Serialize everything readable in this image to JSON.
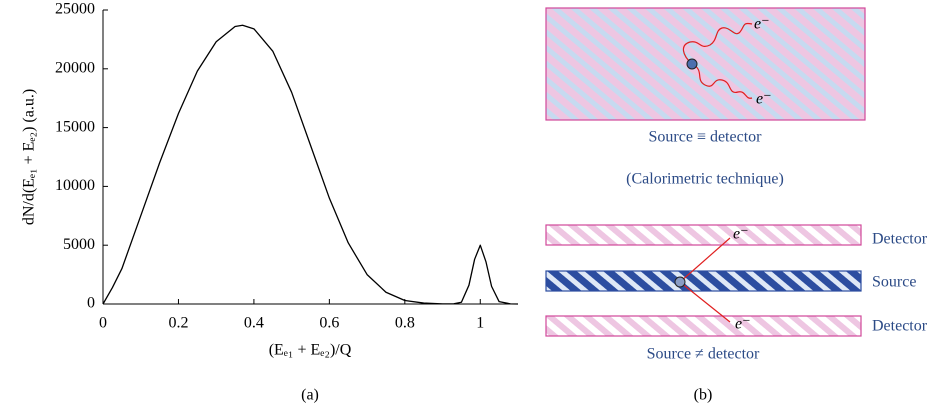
{
  "chart_data": {
    "type": "line",
    "x_label": "(Eₑ₁ + Eₑ₂)/Q",
    "y_label": "dN/d(Eₑ₁ + Eₑ₂) (a.u.)",
    "caption": "(a)",
    "x": [
      0,
      0.025,
      0.05,
      0.1,
      0.15,
      0.2,
      0.25,
      0.3,
      0.35,
      0.37,
      0.4,
      0.45,
      0.5,
      0.55,
      0.6,
      0.65,
      0.7,
      0.75,
      0.8,
      0.85,
      0.9,
      0.93,
      0.95,
      0.97,
      0.985,
      1.0,
      1.015,
      1.03,
      1.05,
      1.08,
      1.1
    ],
    "values": [
      0,
      1400,
      3000,
      7500,
      12000,
      16200,
      19800,
      22300,
      23600,
      23700,
      23400,
      21500,
      18000,
      13500,
      9000,
      5200,
      2500,
      1000,
      300,
      80,
      10,
      20,
      150,
      1600,
      3800,
      5000,
      3600,
      1500,
      200,
      10,
      0
    ],
    "color": "#000000",
    "xlim": [
      0,
      1.1
    ],
    "xticks": [
      0,
      0.2,
      0.4,
      0.6,
      0.8,
      1
    ],
    "ylim": [
      0,
      25000
    ],
    "yticks": [
      0,
      5000,
      10000,
      15000,
      20000,
      25000
    ]
  },
  "diagram": {
    "top_panel": {
      "electron_labels": [
        "e⁻",
        "e⁻"
      ],
      "caption": "Source ≡ detector",
      "technique": "(Calorimetric technique)"
    },
    "bottom_panel": {
      "layers": [
        "Detector",
        "Source",
        "Detector"
      ],
      "electron_labels": [
        "e⁻",
        "e⁻"
      ],
      "caption": "Source ≠ detector"
    },
    "caption": "(b)"
  }
}
